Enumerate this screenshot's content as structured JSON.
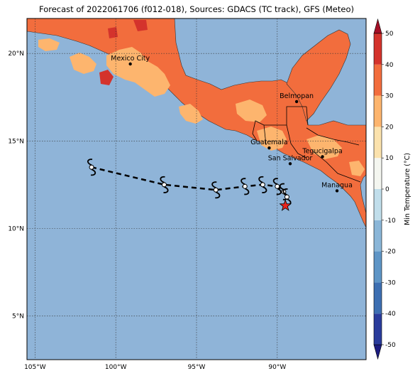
{
  "title": "Forecast of 2022061706 (f012-018), Sources: GDACS (TC track), GFS (Meteo)",
  "map": {
    "lon_range": [
      -105.5,
      -84.5
    ],
    "lat_range": [
      2.5,
      22.0
    ],
    "lon_ticks": [
      {
        "value": -105,
        "label": "105°W"
      },
      {
        "value": -100,
        "label": "100°W"
      },
      {
        "value": -95,
        "label": "95°W"
      },
      {
        "value": -90,
        "label": "90°W"
      }
    ],
    "lat_ticks": [
      {
        "value": 5,
        "label": "5°N"
      },
      {
        "value": 10,
        "label": "10°N"
      },
      {
        "value": 15,
        "label": "15°N"
      },
      {
        "value": 20,
        "label": "20°N"
      }
    ],
    "grid": true,
    "ocean_color": "#8fb4d8",
    "land_color": "#f26d3d"
  },
  "cities": [
    {
      "name": "Mexico City",
      "lon": -99.1,
      "lat": 19.4
    },
    {
      "name": "Belmopan",
      "lon": -88.8,
      "lat": 17.25
    },
    {
      "name": "Guatemala",
      "lon": -90.5,
      "lat": 14.6
    },
    {
      "name": "San Salvador",
      "lon": -89.2,
      "lat": 13.7
    },
    {
      "name": "Tegucigalpa",
      "lon": -87.2,
      "lat": 14.1
    },
    {
      "name": "Managua",
      "lon": -86.3,
      "lat": 12.15
    }
  ],
  "track": {
    "points": [
      {
        "lon": -101.5,
        "lat": 13.5
      },
      {
        "lon": -97.0,
        "lat": 12.5
      },
      {
        "lon": -93.8,
        "lat": 12.2
      },
      {
        "lon": -92.0,
        "lat": 12.4
      },
      {
        "lon": -90.9,
        "lat": 12.5
      },
      {
        "lon": -90.0,
        "lat": 12.4
      },
      {
        "lon": -89.6,
        "lat": 12.1
      },
      {
        "lon": -89.4,
        "lat": 11.8
      }
    ],
    "current_position": {
      "lon": -89.5,
      "lat": 11.3
    },
    "symbol": "cyclone-icon",
    "marker_color": "#e8251f"
  },
  "colorbar": {
    "label": "Min Temperature (°C)",
    "ticks": [
      "-50",
      "-40",
      "-30",
      "-20",
      "-10",
      "0",
      "10",
      "20",
      "30",
      "40",
      "50"
    ],
    "colors": [
      "#1c1c80",
      "#2a3c9c",
      "#3d6fb2",
      "#5e95c6",
      "#8ab6d8",
      "#c1deeb",
      "#f4f6f0",
      "#fbe2ad",
      "#fdb56e",
      "#f26d3d",
      "#d4332c",
      "#a50f26"
    ]
  }
}
